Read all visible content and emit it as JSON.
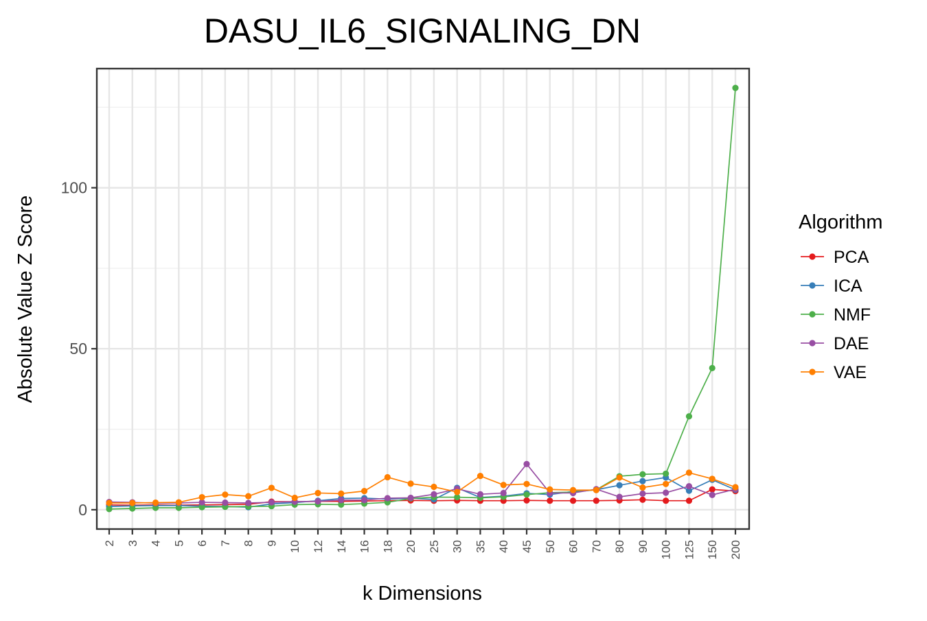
{
  "chart_data": {
    "type": "line",
    "title": "DASU_IL6_SIGNALING_DN",
    "xlabel": "k Dimensions",
    "ylabel": "Absolute Value Z Score",
    "categories": [
      "2",
      "3",
      "4",
      "5",
      "6",
      "7",
      "8",
      "9",
      "10",
      "12",
      "14",
      "16",
      "18",
      "20",
      "25",
      "30",
      "35",
      "40",
      "45",
      "50",
      "60",
      "70",
      "80",
      "90",
      "100",
      "125",
      "150",
      "200"
    ],
    "ylim": [
      -6,
      137
    ],
    "y_ticks": [
      0,
      50,
      100
    ],
    "grid": true,
    "legend": {
      "title": "Algorithm",
      "position": "right"
    },
    "series": [
      {
        "name": "PCA",
        "color": "#e41a1c",
        "values": [
          1.5,
          1.4,
          1.5,
          1.4,
          1.5,
          1.6,
          1.7,
          2.5,
          2.5,
          2.6,
          2.6,
          2.7,
          2.8,
          2.9,
          2.8,
          2.9,
          2.8,
          2.8,
          2.9,
          2.8,
          2.8,
          2.8,
          2.9,
          3.1,
          2.8,
          2.8,
          6.3,
          5.8
        ]
      },
      {
        "name": "ICA",
        "color": "#377eb8",
        "values": [
          1.0,
          1.2,
          1.3,
          1.3,
          1.1,
          1.0,
          0.8,
          1.8,
          2.2,
          2.8,
          3.5,
          3.6,
          3.3,
          3.6,
          3.2,
          6.8,
          3.8,
          4.2,
          5.1,
          4.7,
          5.7,
          6.2,
          7.6,
          8.9,
          10.0,
          5.9,
          9.3,
          6.2
        ]
      },
      {
        "name": "NMF",
        "color": "#4daf4a",
        "values": [
          0.2,
          0.4,
          0.6,
          0.6,
          0.8,
          0.9,
          1.0,
          1.1,
          1.6,
          1.7,
          1.6,
          1.9,
          2.3,
          3.5,
          3.9,
          3.9,
          3.7,
          4.0,
          4.7,
          5.3,
          5.5,
          6.2,
          10.4,
          11.0,
          11.2,
          29.0,
          44.0,
          131.0
        ]
      },
      {
        "name": "DAE",
        "color": "#984ea3",
        "values": [
          2.4,
          2.3,
          2.0,
          2.1,
          2.3,
          2.2,
          2.1,
          2.3,
          2.5,
          2.6,
          3.0,
          3.0,
          3.6,
          3.7,
          4.8,
          6.5,
          4.8,
          5.2,
          14.2,
          5.2,
          5.2,
          6.4,
          4.0,
          5.0,
          5.3,
          7.3,
          4.6,
          6.4
        ]
      },
      {
        "name": "VAE",
        "color": "#ff7f00",
        "values": [
          2.1,
          2.1,
          2.2,
          2.3,
          3.9,
          4.7,
          4.2,
          6.8,
          3.7,
          5.2,
          5.0,
          5.8,
          10.1,
          8.1,
          7.1,
          5.5,
          10.5,
          7.7,
          8.0,
          6.3,
          6.1,
          6.1,
          10.0,
          6.9,
          8.0,
          11.5,
          9.6,
          7.0
        ]
      }
    ]
  }
}
